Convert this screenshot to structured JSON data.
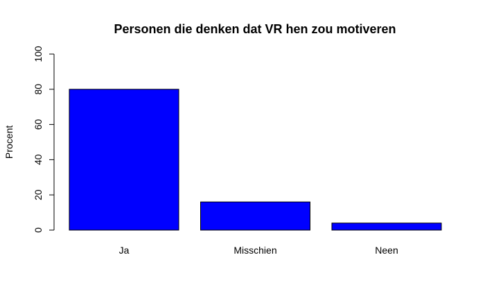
{
  "chart_data": {
    "type": "bar",
    "title": "Personen die denken dat VR hen zou motiveren",
    "xlabel": "",
    "ylabel": "Procent",
    "categories": [
      "Ja",
      "Misschien",
      "Neen"
    ],
    "values": [
      80,
      16,
      4
    ],
    "ylim": [
      0,
      100
    ],
    "yticks": [
      0,
      20,
      40,
      60,
      80,
      100
    ],
    "bar_color": "#0000ff",
    "bar_border_color": "#000000",
    "grid": false,
    "legend": "none"
  }
}
